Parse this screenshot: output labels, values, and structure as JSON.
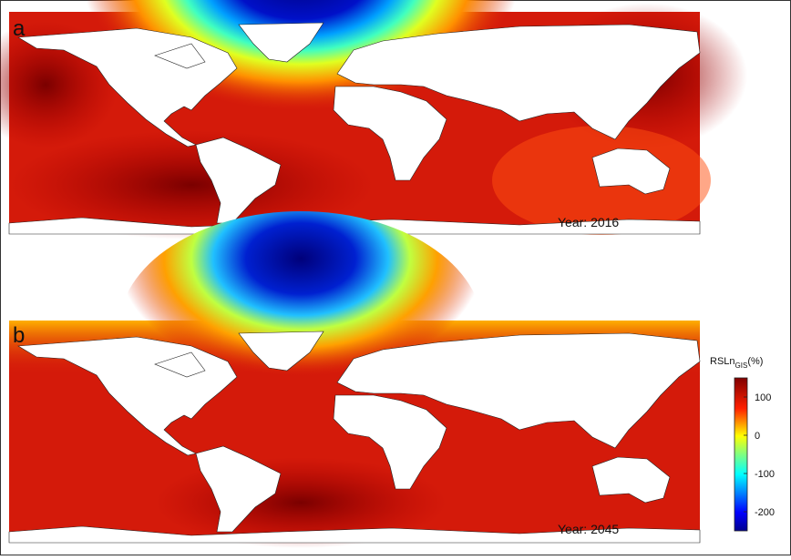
{
  "panels": [
    {
      "letter": "a",
      "year_label": "Year: 2016"
    },
    {
      "letter": "b",
      "year_label": "Year: 2045"
    }
  ],
  "colorbar": {
    "label": "RSLn",
    "label_subscript": "GIS",
    "label_suffix": "(%)",
    "lim": [
      -250,
      150
    ],
    "ticks": [
      100,
      0,
      -100,
      -200
    ]
  }
}
